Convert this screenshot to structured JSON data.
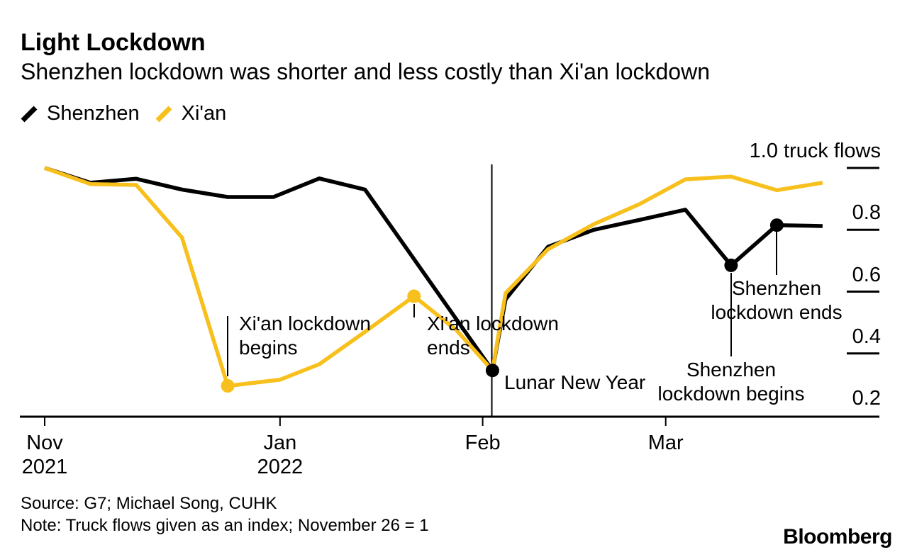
{
  "chart_data": {
    "type": "line",
    "title": "Light Lockdown",
    "subtitle": "Shenzhen lockdown was shorter and less costly than Xi'an lockdown",
    "x_unit": "days since Nov 26, 2021 (truck-flow index, November 26 = 1)",
    "x_range_days": [
      0,
      119
    ],
    "ylim": [
      0.17,
      1.04
    ],
    "grid": false,
    "legend_position": "top-left",
    "x_ticks": [
      {
        "day": 0,
        "label": "Nov",
        "sublabel": "2021"
      },
      {
        "day": 36,
        "label": "Jan",
        "sublabel": "2022"
      },
      {
        "day": 67,
        "label": "Feb",
        "sublabel": ""
      },
      {
        "day": 95,
        "label": "Mar",
        "sublabel": ""
      }
    ],
    "y_ticks": [
      {
        "value": 1.0,
        "label": "1.0 truck flows",
        "dash": true
      },
      {
        "value": 0.8,
        "label": "0.8",
        "dash": true
      },
      {
        "value": 0.6,
        "label": "0.6",
        "dash": true
      },
      {
        "value": 0.4,
        "label": "0.4",
        "dash": true
      },
      {
        "value": 0.2,
        "label": "0.2",
        "dash": false
      }
    ],
    "series": [
      {
        "name": "Shenzhen",
        "color": "#000000",
        "points": [
          [
            0,
            1.0
          ],
          [
            7,
            0.952
          ],
          [
            14,
            0.965
          ],
          [
            21,
            0.93
          ],
          [
            28,
            0.906
          ],
          [
            35,
            0.906
          ],
          [
            42,
            0.966
          ],
          [
            49,
            0.93
          ],
          [
            56,
            0.72
          ],
          [
            63,
            0.51
          ],
          [
            68.5,
            0.345
          ],
          [
            70.5,
            0.575
          ],
          [
            77,
            0.745
          ],
          [
            84,
            0.8
          ],
          [
            91,
            0.832
          ],
          [
            98,
            0.865
          ],
          [
            105,
            0.685
          ],
          [
            112,
            0.815
          ],
          [
            119,
            0.812
          ]
        ]
      },
      {
        "name": "Xi'an",
        "color": "#f8c01c",
        "points": [
          [
            0,
            1.0
          ],
          [
            7,
            0.948
          ],
          [
            14,
            0.945
          ],
          [
            21,
            0.775
          ],
          [
            28,
            0.295
          ],
          [
            36,
            0.315
          ],
          [
            42,
            0.365
          ],
          [
            49,
            0.47
          ],
          [
            56.5,
            0.585
          ],
          [
            63,
            0.475
          ],
          [
            68.5,
            0.345
          ],
          [
            70.5,
            0.595
          ],
          [
            77,
            0.737
          ],
          [
            84,
            0.818
          ],
          [
            91,
            0.883
          ],
          [
            98,
            0.963
          ],
          [
            105,
            0.972
          ],
          [
            112,
            0.928
          ],
          [
            119,
            0.952
          ]
        ]
      }
    ],
    "markers": [
      {
        "series": "Xi'an",
        "day": 28,
        "value": 0.295,
        "annotation": "xian_begins"
      },
      {
        "series": "Xi'an",
        "day": 56.5,
        "value": 0.585,
        "annotation": "xian_ends"
      },
      {
        "series": "Shenzhen",
        "day": 68.5,
        "value": 0.345,
        "annotation": "lunar_new_year"
      },
      {
        "series": "Shenzhen",
        "day": 105,
        "value": 0.685,
        "annotation": "shenzhen_begins"
      },
      {
        "series": "Shenzhen",
        "day": 112,
        "value": 0.815,
        "annotation": "shenzhen_ends"
      }
    ],
    "event_line": {
      "day": 68.4,
      "label": "Lunar New Year"
    },
    "annotations": {
      "xian_begins": {
        "line1": "Xi'an lockdown",
        "line2": "begins"
      },
      "xian_ends": {
        "line1": "Xi'an lockdown",
        "line2": "ends"
      },
      "lunar_new_year": {
        "label": "Lunar New Year"
      },
      "shenzhen_begins": {
        "line1": "Shenzhen",
        "line2": "lockdown begins"
      },
      "shenzhen_ends": {
        "line1": "Shenzhen",
        "line2": "lockdown ends"
      }
    }
  },
  "footer": {
    "source": "Source: G7; Michael Song, CUHK",
    "note": "Note: Truck flows given as an index; November 26 = 1",
    "brand": "Bloomberg"
  }
}
